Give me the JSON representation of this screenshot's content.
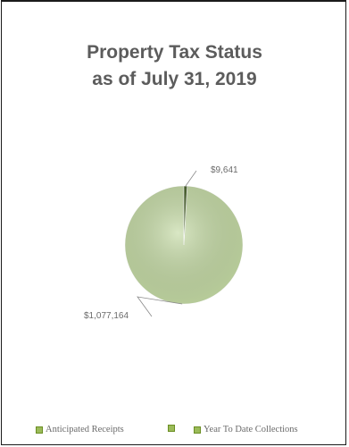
{
  "chart_data": {
    "type": "pie",
    "title": [
      "Property Tax Status",
      "as of July 31, 2019"
    ],
    "slices": [
      {
        "name": "Anticipated Receipts",
        "value": 1077164,
        "label": "$1,077,164",
        "color": "#c5dba5"
      },
      {
        "name": "",
        "value": 0,
        "label": "",
        "color": "#9bbb59"
      },
      {
        "name": "Year To Date Collections",
        "value": 9641,
        "label": "$9,641",
        "color": "#3f5a1f"
      }
    ],
    "legend": {
      "placement": "bottom",
      "items": [
        "Anticipated Receipts",
        "",
        "Year To Date Collections"
      ],
      "colors": [
        "#9bbb59",
        "#9bbb59",
        "#9bbb59"
      ]
    }
  }
}
